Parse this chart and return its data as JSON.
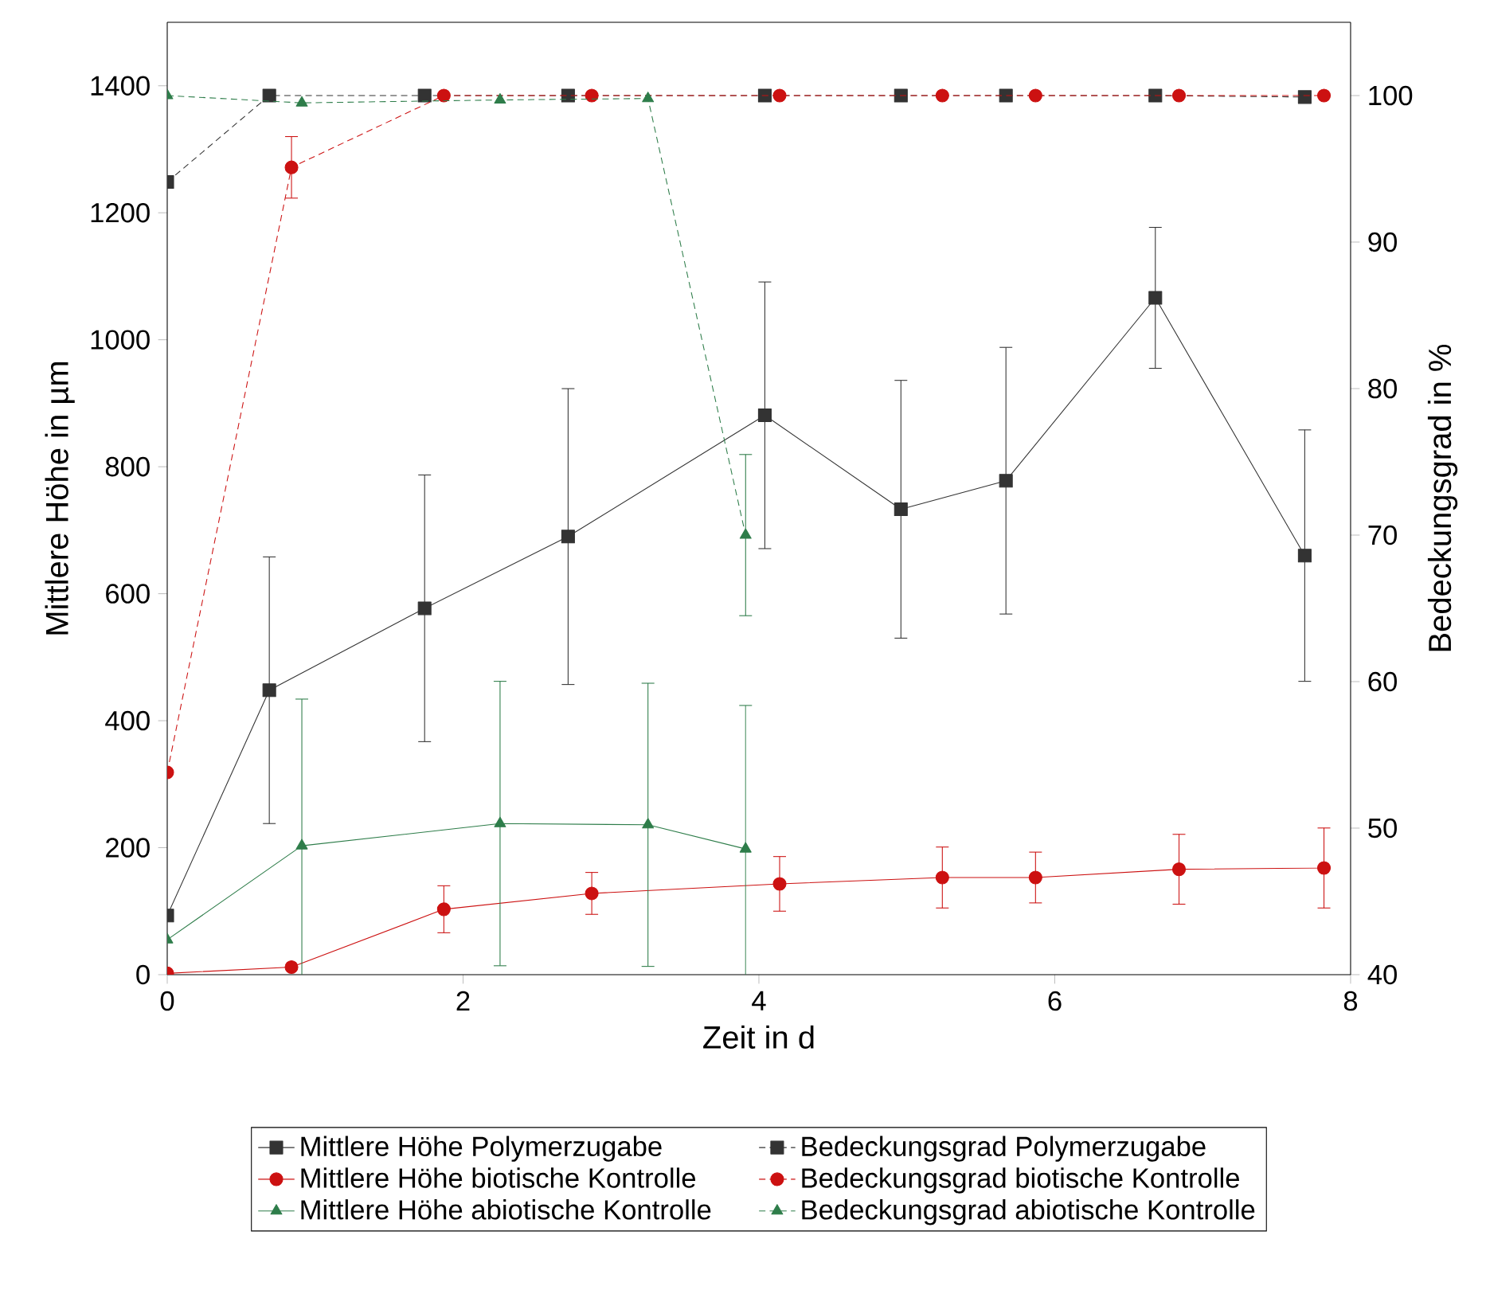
{
  "chart_data": {
    "type": "line",
    "xlabel": "Zeit in d",
    "ylabel": "Mittlere Höhe in µm",
    "y2label": "Bedeckungsgrad in %",
    "xlim": [
      0,
      8
    ],
    "xticks": [
      0,
      2,
      4,
      6,
      8
    ],
    "ylim": [
      0,
      1500
    ],
    "yticks": [
      0,
      200,
      400,
      600,
      800,
      1000,
      1200,
      1400
    ],
    "y2lim": [
      40,
      105
    ],
    "y2ticks": [
      40,
      50,
      60,
      70,
      80,
      90,
      100
    ],
    "legend": "bottom",
    "grid": false,
    "series": [
      {
        "name": "Mittlere Höhe Polymerzugabe",
        "color": "#333333",
        "marker": "square",
        "line_style": "solid",
        "x": [
          0,
          0.69,
          1.74,
          2.71,
          4.04,
          4.96,
          5.67,
          6.68,
          7.69
        ],
        "values": [
          93,
          448,
          577,
          690,
          881,
          733,
          778,
          1066,
          660
        ],
        "errors": [
          null,
          210,
          210,
          233,
          210,
          203,
          210,
          111,
          198
        ]
      },
      {
        "name": "Bedeckungsgrad Polymerzugabe",
        "color": "#333333",
        "marker": "square",
        "line_style": "dashed",
        "axis": "y2",
        "x": [
          0,
          0.69,
          1.74,
          2.71,
          4.04,
          4.96,
          5.67,
          6.68,
          7.69
        ],
        "values": [
          94.1,
          100,
          100,
          100,
          100,
          100,
          100,
          100,
          99.9
        ]
      },
      {
        "name": "Mittlere Höhe biotische Kontrolle",
        "color": "#cc1111",
        "marker": "circle",
        "line_style": "solid",
        "x": [
          0,
          0.84,
          1.87,
          2.87,
          4.14,
          5.24,
          5.87,
          6.84,
          7.82
        ],
        "values": [
          2,
          12,
          103,
          128,
          143,
          153,
          153,
          166,
          168
        ],
        "errors": [
          null,
          null,
          37,
          33,
          43,
          48,
          40,
          55,
          63
        ]
      },
      {
        "name": "Bedeckungsgrad biotische Kontrolle",
        "color": "#cc1111",
        "marker": "circle",
        "line_style": "dashed",
        "axis": "y2",
        "x": [
          0,
          0.84,
          1.87,
          2.87,
          4.14,
          5.24,
          5.87,
          6.84,
          7.82
        ],
        "values": [
          53.8,
          95.1,
          100,
          100,
          100,
          100,
          100,
          100,
          100
        ],
        "errors": [
          null,
          2.1,
          null,
          null,
          null,
          null,
          null,
          null,
          null
        ]
      },
      {
        "name": "Mittlere Höhe abiotische Kontrolle",
        "color": "#2e7d4a",
        "marker": "triangle",
        "line_style": "solid",
        "x": [
          0,
          0.91,
          2.25,
          3.25,
          3.91
        ],
        "values": [
          55,
          203,
          238,
          236,
          198
        ],
        "errors": [
          null,
          231,
          224,
          223,
          226
        ]
      },
      {
        "name": "Bedeckungsgrad abiotische Kontrolle",
        "color": "#2e7d4a",
        "marker": "triangle",
        "line_style": "dashed",
        "axis": "y2",
        "x": [
          0,
          0.91,
          2.25,
          3.25,
          3.91
        ],
        "values": [
          100,
          99.5,
          99.7,
          99.8,
          70.0
        ],
        "errors": [
          null,
          null,
          null,
          null,
          5.5
        ]
      }
    ]
  }
}
